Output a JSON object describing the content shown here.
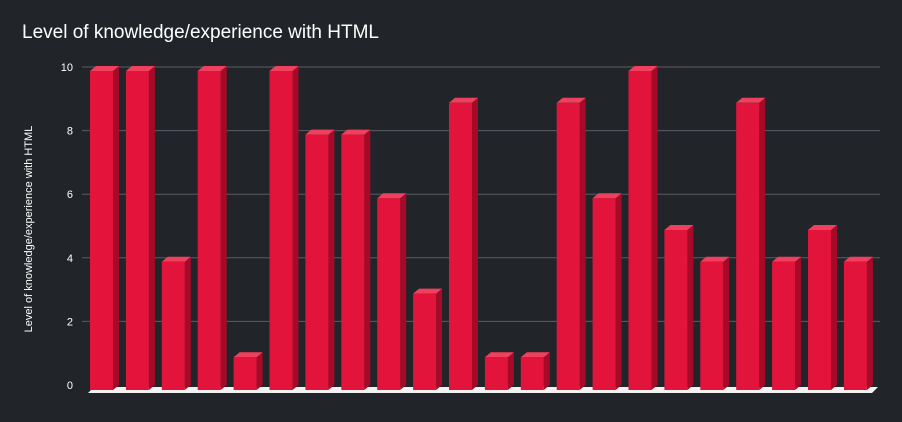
{
  "chart_data": {
    "type": "bar",
    "title": "Level of knowledge/experience with HTML",
    "ylabel": "Level of knowledge/experience with HTML",
    "xlabel": "",
    "ylim": [
      0,
      10
    ],
    "yticks": [
      0,
      2,
      4,
      6,
      8,
      10
    ],
    "grid": true,
    "legend": "none",
    "three_d": true,
    "colors": {
      "background": "#212429",
      "bar_front": "#e3143b",
      "bar_top": "#f0405e",
      "bar_side": "#a50b28",
      "grid": "#5a5d63",
      "floor": "#f2f2f2",
      "text": "#ffffff"
    },
    "values": [
      10,
      10,
      4,
      10,
      1,
      10,
      8,
      8,
      6,
      3,
      9,
      1,
      1,
      9,
      6,
      10,
      5,
      4,
      9,
      4,
      5,
      4
    ]
  }
}
